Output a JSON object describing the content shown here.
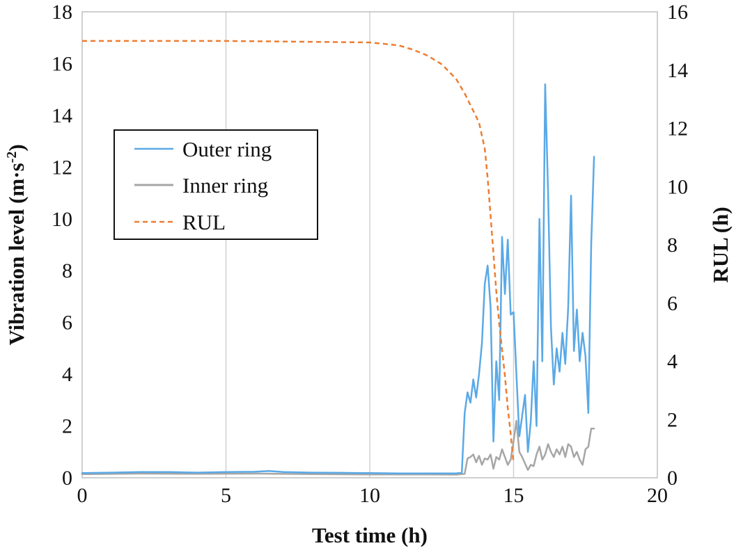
{
  "chart_data": {
    "type": "line",
    "xlabel": "Test time (h)",
    "ylabel": "Vibration level (m·s",
    "ylabel_sup": "-2",
    "ylabel_close": ")",
    "y2label": "RUL (h)",
    "xlim": [
      0,
      20
    ],
    "ylim": [
      0,
      18
    ],
    "y2lim": [
      0,
      16
    ],
    "x_ticks": [
      0,
      5,
      10,
      15,
      20
    ],
    "y_ticks": [
      0,
      2,
      4,
      6,
      8,
      10,
      12,
      14,
      16,
      18
    ],
    "y2_ticks": [
      0,
      2,
      4,
      6,
      8,
      10,
      12,
      14,
      16
    ],
    "grid": "vertical",
    "legend_position": "upper-left",
    "series": [
      {
        "name": "Outer ring",
        "color": "#5aa9e6",
        "style": "solid",
        "axis": "left",
        "x": [
          0,
          1,
          2,
          3,
          4,
          5,
          6,
          6.5,
          7,
          8,
          9,
          10,
          11,
          12,
          13,
          13.2,
          13.3,
          13.4,
          13.5,
          13.6,
          13.7,
          13.8,
          13.9,
          14.0,
          14.1,
          14.2,
          14.3,
          14.4,
          14.5,
          14.6,
          14.7,
          14.8,
          14.9,
          15.0,
          15.1,
          15.2,
          15.3,
          15.4,
          15.5,
          15.6,
          15.7,
          15.8,
          15.9,
          16.0,
          16.1,
          16.2,
          16.3,
          16.4,
          16.5,
          16.6,
          16.7,
          16.8,
          16.9,
          17.0,
          17.1,
          17.2,
          17.3,
          17.4,
          17.5,
          17.6,
          17.7,
          17.8
        ],
        "y": [
          0.18,
          0.2,
          0.22,
          0.22,
          0.2,
          0.22,
          0.23,
          0.26,
          0.22,
          0.2,
          0.19,
          0.18,
          0.17,
          0.17,
          0.17,
          0.2,
          2.5,
          3.3,
          2.9,
          3.8,
          3.1,
          4.0,
          5.2,
          7.5,
          8.2,
          6.6,
          1.4,
          4.5,
          3.0,
          9.3,
          7.1,
          9.2,
          6.3,
          6.4,
          4.0,
          1.6,
          2.4,
          3.2,
          1.0,
          2.2,
          4.5,
          2.0,
          10.0,
          4.5,
          15.2,
          11.0,
          5.8,
          3.6,
          5.0,
          4.1,
          5.6,
          4.4,
          6.6,
          10.9,
          4.9,
          6.5,
          4.5,
          5.6,
          4.7,
          2.5,
          9.0,
          12.4
        ]
      },
      {
        "name": "Inner ring",
        "color": "#a6a6a6",
        "style": "solid",
        "axis": "left",
        "x": [
          0,
          2,
          4,
          6,
          8,
          10,
          12,
          13,
          13.3,
          13.4,
          13.5,
          13.6,
          13.7,
          13.8,
          13.9,
          14.0,
          14.1,
          14.2,
          14.3,
          14.4,
          14.5,
          14.6,
          14.7,
          14.8,
          14.9,
          15.0,
          15.1,
          15.2,
          15.3,
          15.4,
          15.5,
          15.6,
          15.7,
          15.8,
          15.9,
          16.0,
          16.1,
          16.2,
          16.3,
          16.4,
          16.5,
          16.6,
          16.7,
          16.8,
          16.9,
          17.0,
          17.1,
          17.2,
          17.3,
          17.4,
          17.5,
          17.6,
          17.7,
          17.8
        ],
        "y": [
          0.14,
          0.16,
          0.15,
          0.16,
          0.14,
          0.13,
          0.13,
          0.12,
          0.15,
          0.75,
          0.8,
          0.9,
          0.6,
          0.85,
          0.5,
          0.75,
          0.7,
          0.9,
          0.35,
          0.8,
          0.7,
          1.1,
          0.8,
          0.5,
          0.7,
          1.4,
          2.2,
          1.0,
          0.8,
          0.55,
          0.3,
          0.5,
          0.45,
          0.9,
          1.2,
          0.7,
          0.9,
          1.3,
          1.0,
          0.8,
          1.1,
          0.9,
          1.2,
          0.8,
          1.3,
          1.2,
          0.8,
          1.0,
          0.7,
          0.5,
          1.1,
          1.2,
          1.9,
          1.9
        ]
      },
      {
        "name": "RUL",
        "color": "#ed7d31",
        "style": "dashed",
        "axis": "right",
        "x": [
          0,
          5,
          10,
          11,
          11.5,
          12,
          12.5,
          13,
          13.3,
          13.6,
          13.8,
          14.0,
          14.1,
          14.2,
          14.3,
          14.4,
          14.5,
          14.6,
          14.7,
          14.8,
          14.9,
          15.0
        ],
        "y": [
          15.0,
          15.0,
          14.95,
          14.85,
          14.7,
          14.5,
          14.2,
          13.7,
          13.2,
          12.6,
          12.2,
          11.3,
          10.3,
          9.0,
          7.7,
          6.4,
          5.3,
          4.4,
          3.5,
          2.4,
          1.5,
          0.5
        ]
      }
    ]
  }
}
